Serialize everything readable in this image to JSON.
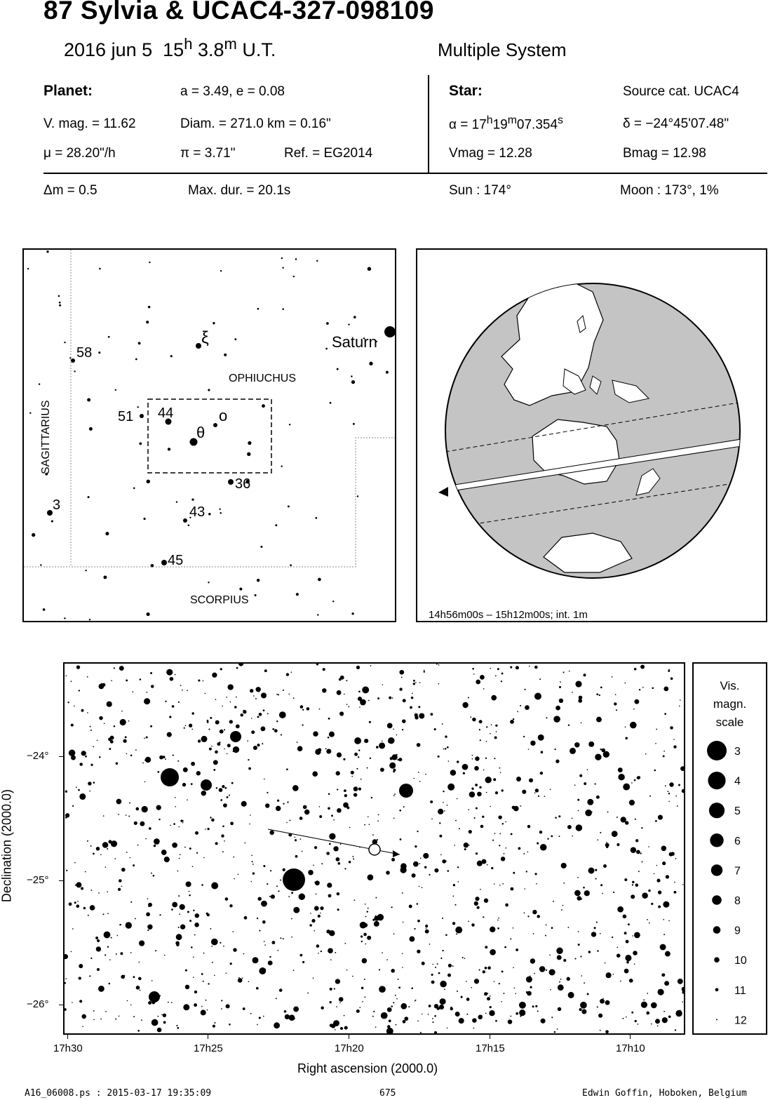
{
  "header": {
    "title": "87 Sylvia  &  UCAC4-327-098109",
    "date": "2016 jun  5",
    "time_h": "15",
    "time_h_sup": "h",
    "time_m": "3.8",
    "time_m_sup": "m",
    "time_suffix": "U.T.",
    "system": "Multiple System"
  },
  "planet": {
    "heading": "Planet:",
    "orbit": "a = 3.49, e = 0.08",
    "vmag": "V. mag. = 11.62",
    "diam": "Diam. = 271.0 km = 0.16\"",
    "mu": "μ =  28.20\"/h",
    "pi": "π =  3.71\"",
    "ref": "Ref. = EG2014"
  },
  "star": {
    "heading": "Star:",
    "source": "Source cat.  UCAC4",
    "ra_prefix": "α = 17",
    "ra_h": "h",
    "ra_mid": "19",
    "ra_m": "m",
    "ra_sec": "07.354",
    "ra_s": "s",
    "dec": "δ = −24°45'07.48\"",
    "vmag": "Vmag = 12.28",
    "bmag": "Bmag = 12.98"
  },
  "event": {
    "dm": "Δm = 0.5",
    "maxdur": "Max. dur. = 20.1s",
    "sun": "Sun : 174°",
    "moon": "Moon : 173°,  1%"
  },
  "finder": {
    "constellations": [
      "OPHIUCHUS",
      "SAGITTARIUS",
      "SCORPIUS"
    ],
    "star_labels": [
      "58",
      "51",
      "44",
      "36",
      "43",
      "45",
      "3",
      "ξ",
      "ο",
      "θ"
    ],
    "planet_label": "Saturn"
  },
  "globe": {
    "interval": "14h56m00s – 15h12m00s; int.  1m"
  },
  "chart": {
    "x_label": "Right ascension (2000.0)",
    "y_label": "Declination (2000.0)",
    "x_ticks": [
      "17h30",
      "17h25",
      "17h20",
      "17h15",
      "17h10"
    ],
    "y_ticks": [
      "−24°",
      "−25°",
      "−26°"
    ]
  },
  "legend": {
    "title_lines": [
      "Vis.",
      "magn.",
      "scale"
    ],
    "mags": [
      "3",
      "4",
      "5",
      "6",
      "7",
      "8",
      "9",
      "10",
      "11",
      "12"
    ]
  },
  "footer": {
    "file": "A16_06008.ps : 2015-03-17 19:35:09",
    "page": "675",
    "author": "Edwin Goffin, Hoboken, Belgium"
  }
}
